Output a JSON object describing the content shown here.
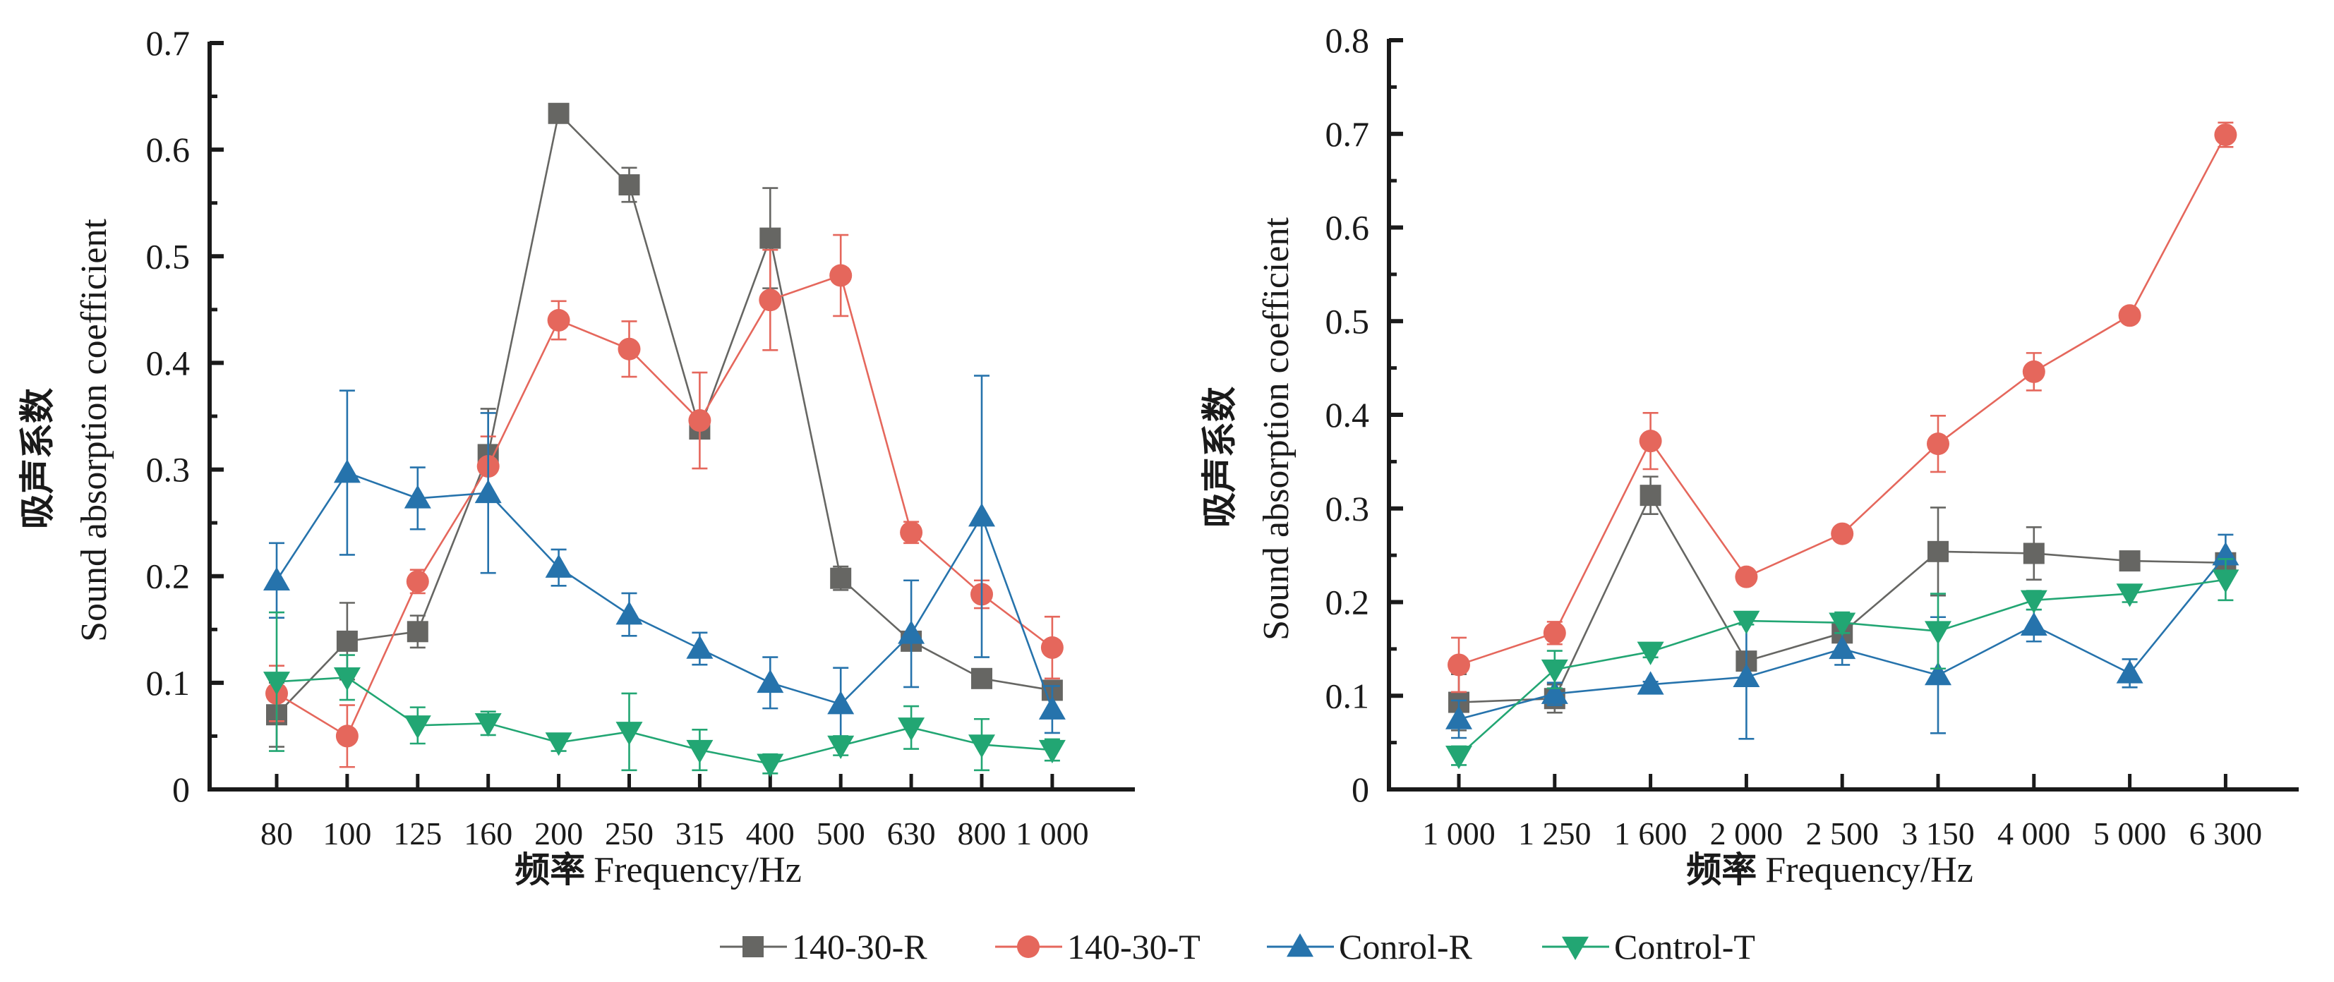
{
  "series_styles": [
    {
      "name": "140-30-R",
      "color": "#666663",
      "marker": "square"
    },
    {
      "name": "140-30-T",
      "color": "#E5675C",
      "marker": "circle"
    },
    {
      "name": "Conrol-R",
      "color": "#2673AC",
      "marker": "triangle-up"
    },
    {
      "name": "Control-T",
      "color": "#22A673",
      "marker": "triangle-down"
    }
  ],
  "legend": {
    "position": "bottom-center",
    "items": [
      "140-30-R",
      "140-30-T",
      "Conrol-R",
      "Control-T"
    ]
  },
  "chart_data": [
    {
      "type": "line",
      "title": "",
      "xlabel_cn": "频率",
      "xlabel": "Frequency/Hz",
      "ylabel_cn": "吸声系数",
      "ylabel": "Sound absorption coefficient",
      "ylim": [
        0,
        0.7
      ],
      "yticks": [
        "0",
        "0.1",
        "0.2",
        "0.3",
        "0.4",
        "0.5",
        "0.6",
        "0.7"
      ],
      "ytick_values": [
        0,
        0.1,
        0.2,
        0.3,
        0.4,
        0.5,
        0.6,
        0.7
      ],
      "y_minor_step": 0.05,
      "grid": false,
      "categories": [
        "80",
        "100",
        "125",
        "160",
        "200",
        "250",
        "315",
        "400",
        "500",
        "630",
        "800",
        "1 000"
      ],
      "series": [
        {
          "name": "140-30-R",
          "values": [
            0.07,
            0.139,
            0.148,
            0.314,
            0.634,
            0.567,
            0.338,
            0.517,
            0.198,
            0.139,
            0.104,
            0.093
          ],
          "errors": [
            0.03,
            0.036,
            0.015,
            0.043,
            0.0,
            0.016,
            0.004,
            0.047,
            0.011,
            0.005,
            0.003,
            0.005
          ]
        },
        {
          "name": "140-30-T",
          "values": [
            0.09,
            0.05,
            0.195,
            0.303,
            0.44,
            0.413,
            0.346,
            0.459,
            0.482,
            0.241,
            0.183,
            0.133
          ],
          "errors": [
            0.026,
            0.029,
            0.011,
            0.028,
            0.018,
            0.026,
            0.045,
            0.047,
            0.038,
            0.01,
            0.013,
            0.029
          ]
        },
        {
          "name": "Conrol-R",
          "values": [
            0.196,
            0.297,
            0.273,
            0.278,
            0.208,
            0.164,
            0.132,
            0.1,
            0.08,
            0.146,
            0.256,
            0.075
          ],
          "errors": [
            0.035,
            0.077,
            0.029,
            0.075,
            0.017,
            0.02,
            0.015,
            0.024,
            0.034,
            0.05,
            0.132,
            0.022
          ]
        },
        {
          "name": "Control-T",
          "values": [
            0.101,
            0.105,
            0.06,
            0.062,
            0.044,
            0.054,
            0.037,
            0.024,
            0.041,
            0.058,
            0.042,
            0.037
          ],
          "errors": [
            0.065,
            0.021,
            0.017,
            0.011,
            0.008,
            0.036,
            0.019,
            0.009,
            0.009,
            0.02,
            0.024,
            0.01
          ]
        }
      ]
    },
    {
      "type": "line",
      "title": "",
      "xlabel_cn": "频率",
      "xlabel": "Frequency/Hz",
      "ylabel_cn": "吸声系数",
      "ylabel": "Sound absorption coefficient",
      "ylim": [
        0,
        0.8
      ],
      "yticks": [
        "0",
        "0.1",
        "0.2",
        "0.3",
        "0.4",
        "0.5",
        "0.6",
        "0.7",
        "0.8"
      ],
      "ytick_values": [
        0,
        0.1,
        0.2,
        0.3,
        0.4,
        0.5,
        0.6,
        0.7,
        0.8
      ],
      "y_minor_step": 0.05,
      "grid": false,
      "categories": [
        "1 000",
        "1 250",
        "1 600",
        "2 000",
        "2 500",
        "3 150",
        "4 000",
        "5 000",
        "6 300"
      ],
      "series": [
        {
          "name": "140-30-R",
          "values": [
            0.093,
            0.097,
            0.314,
            0.137,
            0.167,
            0.254,
            0.252,
            0.244,
            0.242
          ],
          "errors": [
            0.03,
            0.015,
            0.02,
            0.005,
            0.01,
            0.047,
            0.028,
            0.005,
            0.005
          ]
        },
        {
          "name": "140-30-T",
          "values": [
            0.133,
            0.167,
            0.372,
            0.227,
            0.273,
            0.369,
            0.446,
            0.506,
            0.699
          ],
          "errors": [
            0.029,
            0.012,
            0.03,
            0.005,
            0.003,
            0.03,
            0.02,
            0.004,
            0.013
          ]
        },
        {
          "name": "Conrol-R",
          "values": [
            0.075,
            0.102,
            0.112,
            0.12,
            0.15,
            0.122,
            0.175,
            0.124,
            0.25
          ],
          "errors": [
            0.02,
            0.012,
            0.003,
            0.066,
            0.017,
            0.062,
            0.017,
            0.015,
            0.022
          ]
        },
        {
          "name": "Control-T",
          "values": [
            0.036,
            0.128,
            0.147,
            0.18,
            0.178,
            0.169,
            0.202,
            0.209,
            0.224
          ],
          "errors": [
            0.01,
            0.02,
            0.006,
            0.004,
            0.011,
            0.04,
            0.01,
            0.009,
            0.022
          ]
        }
      ]
    }
  ]
}
